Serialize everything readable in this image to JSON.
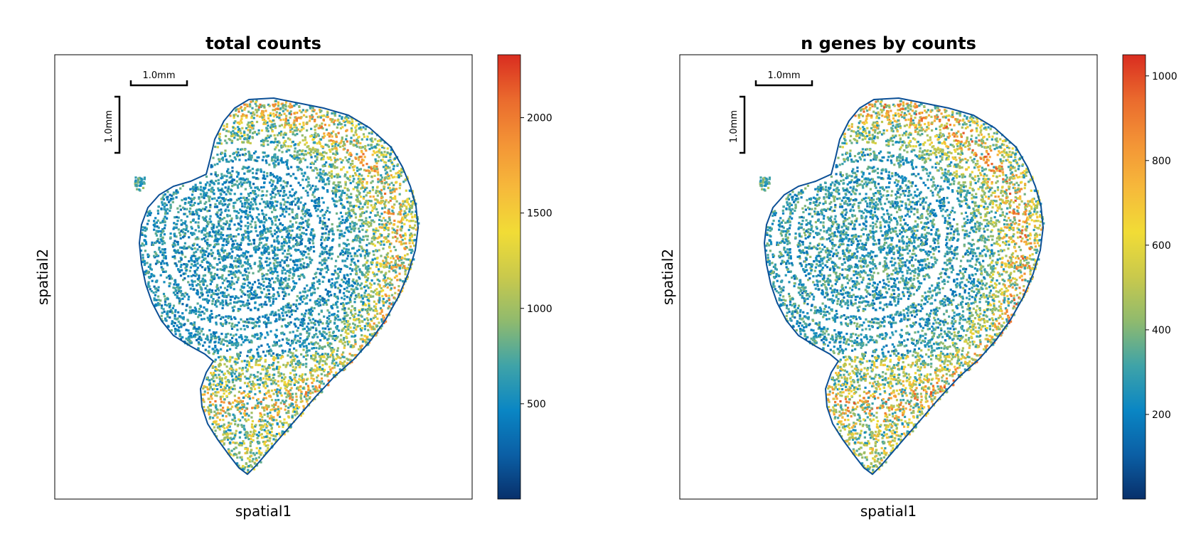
{
  "chart_data": [
    {
      "type": "scatter",
      "title": "total counts",
      "xlabel": "spatial1",
      "ylabel": "spatial2",
      "scalebar": {
        "horizontal_label": "1.0mm",
        "vertical_label": "1.0mm"
      },
      "colorbar": {
        "vmin": 0,
        "vmax": 2330,
        "ticks": [
          500,
          1000,
          1500,
          2000
        ],
        "tick_labels": [
          "500",
          "1000",
          "1500",
          "2000"
        ],
        "colormap": [
          "#08306b",
          "#0b5fa5",
          "#0a86c4",
          "#3fa3a8",
          "#8fba6e",
          "#c9c94c",
          "#f1dc36",
          "#f6b93b",
          "#f39436",
          "#ea6a2d",
          "#d92d20"
        ]
      },
      "value_distribution": {
        "typical": 600,
        "hot_region": 1300
      }
    },
    {
      "type": "scatter",
      "title": "n genes by counts",
      "xlabel": "spatial1",
      "ylabel": "spatial2",
      "scalebar": {
        "horizontal_label": "1.0mm",
        "vertical_label": "1.0mm"
      },
      "colorbar": {
        "vmin": 0,
        "vmax": 1050,
        "ticks": [
          200,
          400,
          600,
          800,
          1000
        ],
        "tick_labels": [
          "200",
          "400",
          "600",
          "800",
          "1000"
        ],
        "colormap": [
          "#08306b",
          "#0b5fa5",
          "#0a86c4",
          "#3fa3a8",
          "#8fba6e",
          "#c9c94c",
          "#f1dc36",
          "#f6b93b",
          "#f39436",
          "#ea6a2d",
          "#d92d20"
        ]
      },
      "value_distribution": {
        "typical": 300,
        "hot_region": 600
      }
    }
  ]
}
